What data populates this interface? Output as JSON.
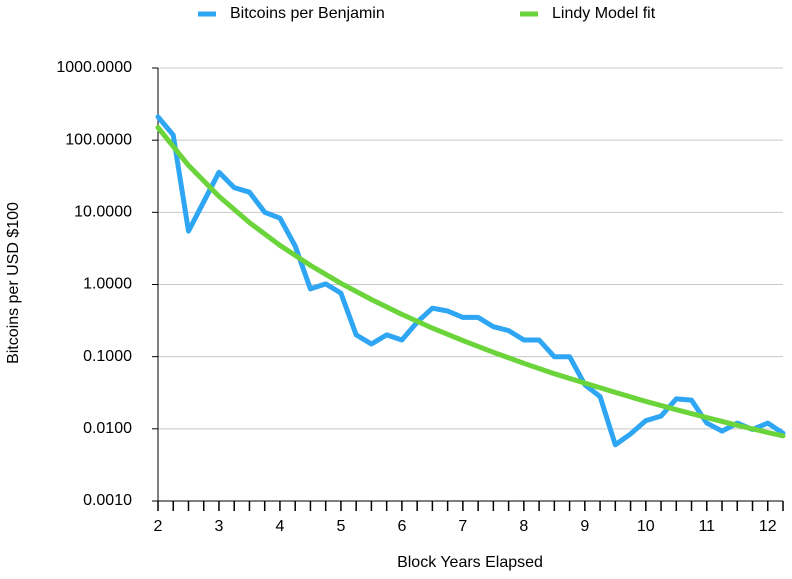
{
  "chart_data": {
    "type": "line",
    "x_label": "Block Years Elapsed",
    "y_label": "Bitcoins per USD $100",
    "yscale": "log",
    "grid": true,
    "legend": "top",
    "xlim": [
      2,
      12.25
    ],
    "ylim": [
      0.001,
      1000
    ],
    "xticks": [
      2,
      3,
      4,
      5,
      6,
      7,
      8,
      9,
      10,
      11,
      12
    ],
    "xminorticks": [
      2.25,
      2.5,
      2.75,
      3.25,
      3.5,
      3.75,
      4.25,
      4.5,
      4.75,
      5.25,
      5.5,
      5.75,
      6.25,
      6.5,
      6.75,
      7.25,
      7.5,
      7.75,
      8.25,
      8.5,
      8.75,
      9.25,
      9.5,
      9.75,
      10.25,
      10.5,
      10.75,
      11.25,
      11.5,
      11.75,
      12.25
    ],
    "yticks": [
      {
        "value": 0.001,
        "label": "0.0010"
      },
      {
        "value": 0.01,
        "label": "0.0100"
      },
      {
        "value": 0.1,
        "label": "0.1000"
      },
      {
        "value": 1,
        "label": "1.0000"
      },
      {
        "value": 10,
        "label": "10.0000"
      },
      {
        "value": 100,
        "label": "100.0000"
      },
      {
        "value": 1000,
        "label": "1000.0000"
      }
    ],
    "series": [
      {
        "name": "Bitcoins per Benjamin",
        "color": "#2ea6f3",
        "x": [
          2,
          2.25,
          2.5,
          2.75,
          3,
          3.25,
          3.5,
          3.75,
          4,
          4.25,
          4.5,
          4.75,
          5,
          5.25,
          5.5,
          5.75,
          6,
          6.25,
          6.5,
          6.75,
          7,
          7.25,
          7.5,
          7.75,
          8,
          8.25,
          8.5,
          8.75,
          9,
          9.25,
          9.5,
          9.75,
          10,
          10.25,
          10.5,
          10.75,
          11,
          11.25,
          11.5,
          11.75,
          12,
          12.25
        ],
        "values": [
          210,
          118,
          5.5,
          14,
          36,
          22,
          19,
          10,
          8.3,
          3.4,
          0.87,
          1.02,
          0.76,
          0.2,
          0.15,
          0.2,
          0.17,
          0.3,
          0.47,
          0.43,
          0.35,
          0.35,
          0.26,
          0.23,
          0.17,
          0.17,
          0.1,
          0.1,
          0.041,
          0.028,
          0.006,
          0.0085,
          0.013,
          0.015,
          0.026,
          0.025,
          0.012,
          0.0093,
          0.012,
          0.0098,
          0.012,
          0.0087
        ]
      },
      {
        "name": "Lindy Model fit",
        "color": "#6bd43a",
        "x": [
          2,
          2.5,
          3,
          3.5,
          4,
          4.5,
          5,
          5.5,
          6,
          6.5,
          7,
          7.5,
          8,
          8.5,
          9,
          9.5,
          10,
          10.5,
          11,
          11.5,
          12,
          12.25
        ],
        "values": [
          150,
          44.7,
          16.6,
          7.2,
          3.48,
          1.84,
          1.04,
          0.62,
          0.385,
          0.249,
          0.167,
          0.115,
          0.081,
          0.058,
          0.043,
          0.032,
          0.024,
          0.0184,
          0.0143,
          0.0112,
          0.0089,
          0.008
        ]
      }
    ]
  }
}
